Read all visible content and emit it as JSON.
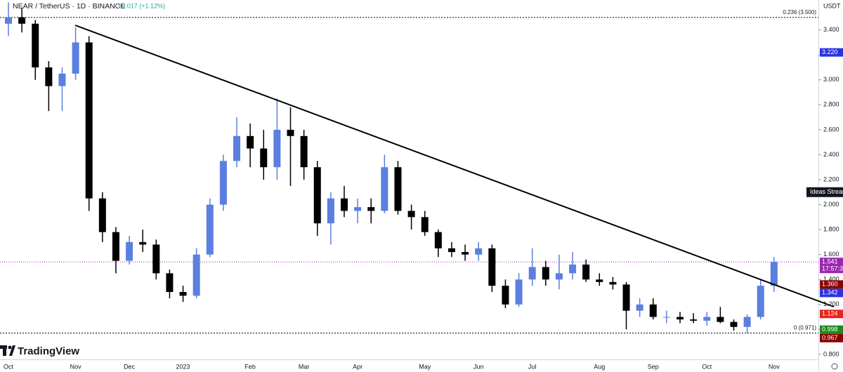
{
  "header": {
    "symbol": "NEAR / TetherUS · 1D · BINANCE",
    "change": "+0.017 (+1.12%)",
    "logo": "TradingView",
    "currency": "USDT",
    "side_label": "Ideas Stream"
  },
  "chart_data": {
    "type": "candlestick",
    "categories": [
      "Oct",
      null,
      null,
      null,
      null,
      "Nov",
      null,
      null,
      null,
      "Dec",
      null,
      null,
      null,
      "2023",
      null,
      null,
      null,
      null,
      "Feb",
      null,
      null,
      null,
      "Mar",
      null,
      null,
      null,
      "Apr",
      null,
      null,
      null,
      null,
      "May",
      null,
      null,
      null,
      "Jun",
      null,
      null,
      null,
      "Jul",
      null,
      null,
      null,
      null,
      "Aug",
      null,
      null,
      null,
      "Sep",
      null,
      null,
      null,
      "Oct",
      null,
      null,
      null,
      null,
      "Nov"
    ],
    "open": [
      3.45,
      3.5,
      3.45,
      3.1,
      2.95,
      3.05,
      3.3,
      2.05,
      1.78,
      1.55,
      1.7,
      1.68,
      1.45,
      1.3,
      1.27,
      1.6,
      2.0,
      2.35,
      2.55,
      2.45,
      2.3,
      2.6,
      2.55,
      2.3,
      1.85,
      2.05,
      1.95,
      1.98,
      1.95,
      2.3,
      1.95,
      1.9,
      1.78,
      1.65,
      1.62,
      1.6,
      1.65,
      1.35,
      1.2,
      1.4,
      1.5,
      1.4,
      1.45,
      1.52,
      1.4,
      1.38,
      1.36,
      1.15,
      1.2,
      1.1,
      1.1,
      1.08,
      1.07,
      1.1,
      1.06,
      1.02,
      1.1,
      1.35
    ],
    "high": [
      3.62,
      3.58,
      3.48,
      3.15,
      3.1,
      3.42,
      3.35,
      2.1,
      1.82,
      1.75,
      1.8,
      1.72,
      1.48,
      1.35,
      1.65,
      2.05,
      2.4,
      2.7,
      2.65,
      2.6,
      2.85,
      2.78,
      2.6,
      2.35,
      2.1,
      2.15,
      2.05,
      2.05,
      2.4,
      2.35,
      2.0,
      1.95,
      1.8,
      1.7,
      1.68,
      1.7,
      1.68,
      1.4,
      1.45,
      1.65,
      1.55,
      1.6,
      1.62,
      1.56,
      1.45,
      1.42,
      1.38,
      1.25,
      1.25,
      1.15,
      1.14,
      1.13,
      1.14,
      1.18,
      1.08,
      1.12,
      1.4,
      1.58
    ],
    "low": [
      3.35,
      3.38,
      3.0,
      2.75,
      2.75,
      3.0,
      1.95,
      1.7,
      1.45,
      1.52,
      1.62,
      1.4,
      1.25,
      1.22,
      1.25,
      1.58,
      1.95,
      2.3,
      2.3,
      2.2,
      2.2,
      2.15,
      2.2,
      1.75,
      1.68,
      1.9,
      1.85,
      1.85,
      1.93,
      1.92,
      1.8,
      1.75,
      1.58,
      1.58,
      1.55,
      1.55,
      1.3,
      1.17,
      1.18,
      1.35,
      1.35,
      1.32,
      1.4,
      1.38,
      1.35,
      1.32,
      1.0,
      1.1,
      1.08,
      1.05,
      1.05,
      1.05,
      1.03,
      1.05,
      0.99,
      0.97,
      1.08,
      1.3
    ],
    "close": [
      3.5,
      3.45,
      3.1,
      2.95,
      3.05,
      3.3,
      2.05,
      1.78,
      1.55,
      1.7,
      1.68,
      1.45,
      1.3,
      1.27,
      1.6,
      2.0,
      2.35,
      2.55,
      2.45,
      2.3,
      2.6,
      2.55,
      2.3,
      1.85,
      2.05,
      1.95,
      1.98,
      1.95,
      2.3,
      1.95,
      1.9,
      1.78,
      1.65,
      1.62,
      1.6,
      1.65,
      1.35,
      1.2,
      1.4,
      1.5,
      1.4,
      1.45,
      1.52,
      1.4,
      1.38,
      1.36,
      1.15,
      1.2,
      1.1,
      1.1,
      1.08,
      1.07,
      1.1,
      1.06,
      1.02,
      1.1,
      1.35,
      1.541
    ],
    "up_color": "#5b7fe0",
    "down_color": "#000000",
    "ylim": [
      0.76,
      3.64
    ],
    "yticks": [
      {
        "value": 0.8,
        "label": "0.800"
      },
      {
        "value": 1.0,
        "label": "1.000"
      },
      {
        "value": 1.2,
        "label": "1.200"
      },
      {
        "value": 1.4,
        "label": "1.400"
      },
      {
        "value": 1.6,
        "label": "1.600"
      },
      {
        "value": 1.8,
        "label": "1.800"
      },
      {
        "value": 2.0,
        "label": "2.000"
      },
      {
        "value": 2.2,
        "label": "2.200"
      },
      {
        "value": 2.4,
        "label": "2.400"
      },
      {
        "value": 2.6,
        "label": "2.600"
      },
      {
        "value": 2.8,
        "label": "2.800"
      },
      {
        "value": 3.0,
        "label": "3.000"
      },
      {
        "value": 3.2,
        "label": "3.200"
      },
      {
        "value": 3.4,
        "label": "3.400"
      }
    ],
    "levels": [
      {
        "label": "0.236 (3.500)",
        "value": 3.5
      },
      {
        "label": "0 (0.971)",
        "value": 0.971
      }
    ],
    "current_price": {
      "value": 1.541,
      "label": "1.541",
      "countdown": "17:57:3",
      "color": "#9c27b0"
    },
    "badges": [
      {
        "value": 3.22,
        "label": "3.220",
        "color": "#2933e0"
      },
      {
        "value": 1.36,
        "label": "1.360",
        "color": "#8b0000"
      },
      {
        "value": 1.342,
        "label": "1.342",
        "color": "#2933e0"
      },
      {
        "value": 1.124,
        "label": "1.124",
        "color": "#e8231f"
      },
      {
        "value": 0.998,
        "label": "0.998",
        "color": "#1b8a1b"
      },
      {
        "value": 0.967,
        "label": "0.967",
        "color": "#8b0000"
      }
    ],
    "side_label_value": 2.1
  }
}
